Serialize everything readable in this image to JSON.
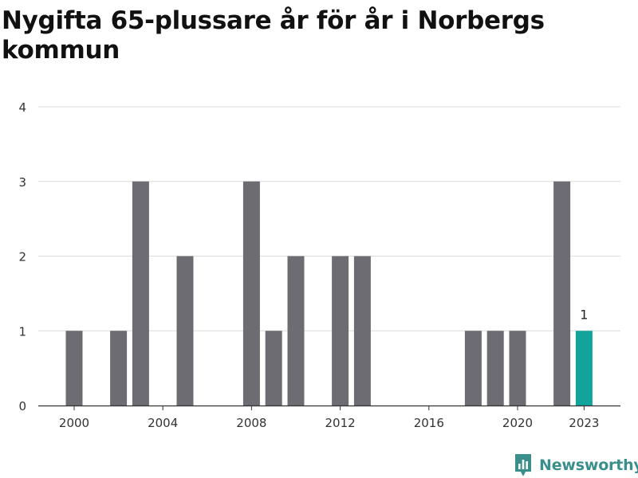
{
  "title": "Nygifta 65-plussare år för år i Norbergs kommun",
  "brand": {
    "name": "Newsworthy",
    "icon": "bar-chart-icon",
    "color": "#3a8f8c"
  },
  "colors": {
    "bar": "#6d6c72",
    "highlight": "#12a39a",
    "grid": "#dcdcdc",
    "axis": "#333333"
  },
  "chart_data": {
    "type": "bar",
    "title": "Nygifta 65-plussare år för år i Norbergs kommun",
    "xlabel": "",
    "ylabel": "",
    "x": [
      2000,
      2001,
      2002,
      2003,
      2004,
      2005,
      2006,
      2007,
      2008,
      2009,
      2010,
      2011,
      2012,
      2013,
      2014,
      2015,
      2016,
      2017,
      2018,
      2019,
      2020,
      2021,
      2022,
      2023
    ],
    "values": [
      1,
      0,
      1,
      3,
      0,
      2,
      0,
      0,
      3,
      1,
      2,
      0,
      2,
      2,
      0,
      0,
      0,
      0,
      1,
      1,
      1,
      0,
      3,
      1
    ],
    "x_ticks": [
      "2000",
      "2004",
      "2008",
      "2012",
      "2016",
      "2020",
      "2023"
    ],
    "y_ticks": [
      0,
      1,
      2,
      3,
      4
    ],
    "ylim": [
      0,
      4
    ],
    "grid": true,
    "highlight": {
      "x": 2023,
      "label": "1"
    }
  }
}
